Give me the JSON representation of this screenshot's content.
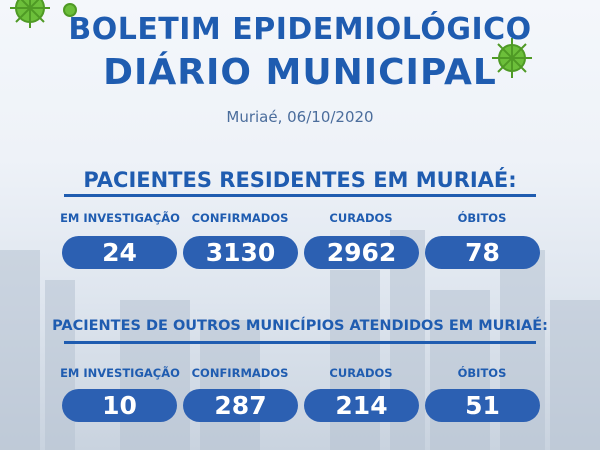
{
  "header": {
    "title_line1": "BOLETIM EPIDEMIOLÓGICO",
    "title_line2": "DIÁRIO MUNICIPAL",
    "date": "Muriaé, 06/10/2020"
  },
  "sections": [
    {
      "heading": "PACIENTES RESIDENTES EM MURIAÉ:",
      "stats": [
        {
          "label": "EM INVESTIGAÇÃO",
          "value": 24
        },
        {
          "label": "CONFIRMADOS",
          "value": 3130
        },
        {
          "label": "CURADOS",
          "value": 2962
        },
        {
          "label": "ÓBITOS",
          "value": 78
        }
      ]
    },
    {
      "heading": "PACIENTES DE OUTROS MUNICÍPIOS ATENDIDOS EM MURIAÉ:",
      "stats": [
        {
          "label": "EM INVESTIGAÇÃO",
          "value": 10
        },
        {
          "label": "CONFIRMADOS",
          "value": 287
        },
        {
          "label": "CURADOS",
          "value": 214
        },
        {
          "label": "ÓBITOS",
          "value": 51
        }
      ]
    }
  ]
}
